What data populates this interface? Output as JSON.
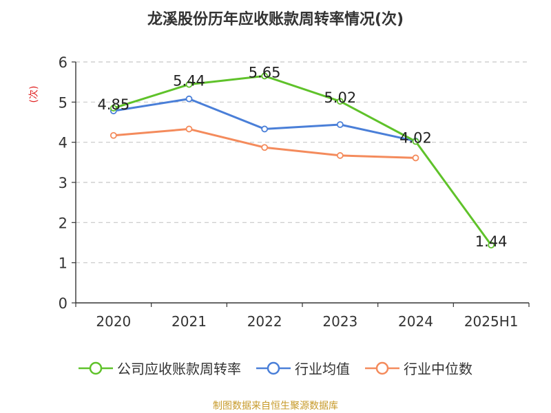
{
  "chart_data": {
    "type": "line",
    "title": "龙溪股份历年应收账款周转率情况(次)",
    "ylabel": "(次)",
    "xlabel": "",
    "categories": [
      "2020",
      "2021",
      "2022",
      "2023",
      "2024",
      "2025H1"
    ],
    "ylim": [
      0,
      6
    ],
    "yticks": [
      0,
      1,
      2,
      3,
      4,
      5,
      6
    ],
    "grid": true,
    "legend_position": "bottom",
    "series": [
      {
        "name": "公司应收账款周转率",
        "color": "#5fc22a",
        "values": [
          4.85,
          5.44,
          5.65,
          5.02,
          4.02,
          1.44
        ],
        "labels": [
          "4.85",
          "5.44",
          "5.65",
          "5.02",
          "4.02",
          "1.44"
        ]
      },
      {
        "name": "行业均值",
        "color": "#4a7fd8",
        "values": [
          4.78,
          5.08,
          4.33,
          4.44,
          4.03,
          null
        ]
      },
      {
        "name": "行业中位数",
        "color": "#f48b5c",
        "values": [
          4.17,
          4.33,
          3.87,
          3.67,
          3.61,
          null
        ]
      }
    ]
  },
  "footer": {
    "source": "制图数据来自恒生聚源数据库"
  }
}
